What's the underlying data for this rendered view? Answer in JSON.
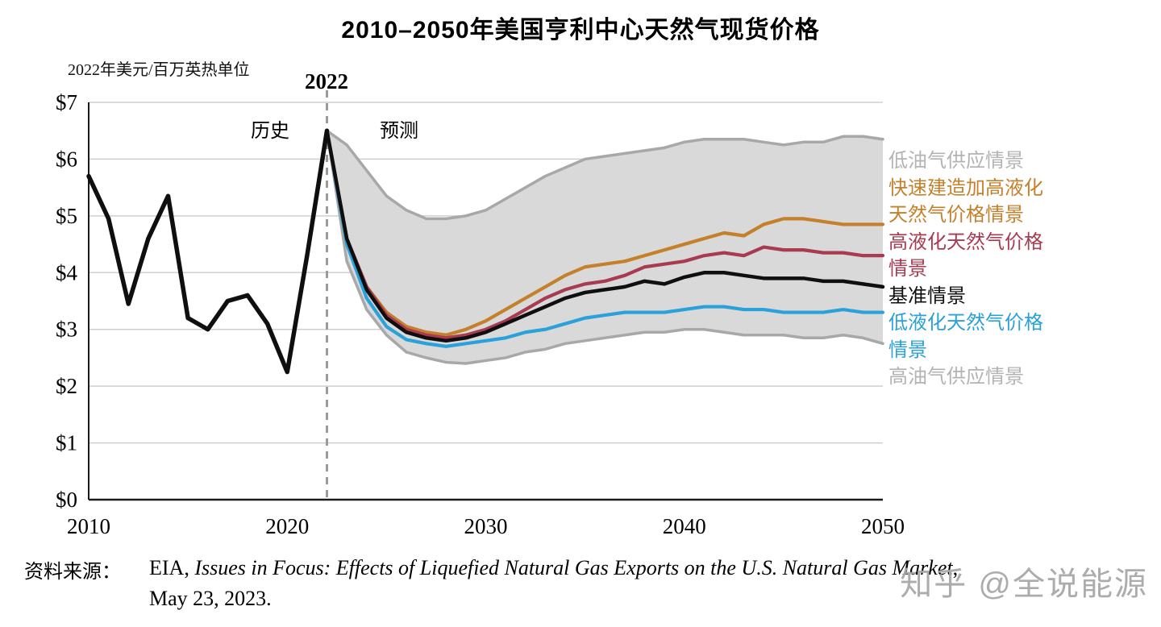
{
  "title": "2010–2050年美国亨利中心天然气现货价格",
  "unit_label": "2022年美元/百万英热单位",
  "annotations": {
    "year_marker": "2022",
    "history": "历史",
    "forecast": "预测"
  },
  "watermark": "知乎 @全说能源",
  "source": {
    "prefix": "资料来源：",
    "org": "EIA, ",
    "title_italic": "Issues in Focus: Effects of Liquefied Natural Gas Exports on the U.S. Natural Gas Market",
    "suffix": ",",
    "date_line": "May 23, 2023."
  },
  "colors": {
    "reference_black": "#0f0f0f",
    "fast_build_orange": "#c5802b",
    "high_lng_red": "#a93b51",
    "low_lng_blue": "#2aa1da",
    "supply_gray": "#a8a8a8",
    "legend_gray": "#b3b3b3",
    "band_gray": "#d9d9d9",
    "grid_gray": "#cfcfcf",
    "divider_gray": "#9a9a9a"
  },
  "chart_data": {
    "type": "line",
    "title": "2010–2050年美国亨利中心天然气现货价格",
    "ylabel": "2022年美元/百万英热单位",
    "xlabel": "",
    "ylim": [
      0,
      7
    ],
    "xlim": [
      2010,
      2050
    ],
    "grid": true,
    "legend_position": "right",
    "divider_year": 2022,
    "band_color": "#d9d9d9",
    "y_ticks": [
      "$0",
      "$1",
      "$2",
      "$3",
      "$4",
      "$5",
      "$6",
      "$7"
    ],
    "x_ticks": [
      {
        "value": 2010,
        "label": "2010"
      },
      {
        "value": 2020,
        "label": "2020"
      },
      {
        "value": 2030,
        "label": "2030"
      },
      {
        "value": 2040,
        "label": "2040"
      },
      {
        "value": 2050,
        "label": "2050"
      }
    ],
    "history_years": [
      2010,
      2011,
      2012,
      2013,
      2014,
      2015,
      2016,
      2017,
      2018,
      2019,
      2020,
      2021,
      2022
    ],
    "forecast_years": [
      2022,
      2023,
      2024,
      2025,
      2026,
      2027,
      2028,
      2029,
      2030,
      2031,
      2032,
      2033,
      2034,
      2035,
      2036,
      2037,
      2038,
      2039,
      2040,
      2041,
      2042,
      2043,
      2044,
      2045,
      2046,
      2047,
      2048,
      2049,
      2050
    ],
    "series": [
      {
        "id": "low_supply",
        "name": "低油气供应情景",
        "color": "#a8a8a8",
        "width": 3.5,
        "values": [
          6.5,
          6.25,
          5.8,
          5.35,
          5.1,
          4.95,
          4.95,
          5.0,
          5.1,
          5.3,
          5.5,
          5.7,
          5.85,
          6.0,
          6.05,
          6.1,
          6.15,
          6.2,
          6.3,
          6.35,
          6.35,
          6.35,
          6.3,
          6.25,
          6.3,
          6.3,
          6.4,
          6.4,
          6.35
        ]
      },
      {
        "id": "high_supply",
        "name": "高油气供应情景",
        "color": "#a8a8a8",
        "width": 3.5,
        "values": [
          6.5,
          4.2,
          3.35,
          2.9,
          2.6,
          2.5,
          2.42,
          2.4,
          2.45,
          2.5,
          2.6,
          2.65,
          2.75,
          2.8,
          2.85,
          2.9,
          2.95,
          2.95,
          3.0,
          3.0,
          2.95,
          2.9,
          2.9,
          2.9,
          2.85,
          2.85,
          2.9,
          2.85,
          2.75
        ]
      },
      {
        "id": "low_lng",
        "name": "低液化天然气价格情景",
        "color": "#2aa1da",
        "width": 4.2,
        "values": [
          6.5,
          4.5,
          3.55,
          3.05,
          2.82,
          2.75,
          2.7,
          2.75,
          2.8,
          2.85,
          2.95,
          3.0,
          3.1,
          3.2,
          3.25,
          3.3,
          3.3,
          3.3,
          3.35,
          3.4,
          3.4,
          3.35,
          3.35,
          3.3,
          3.3,
          3.3,
          3.35,
          3.3,
          3.3
        ]
      },
      {
        "id": "fast_build_high_lng",
        "name": "快速建造加高液化天然气价格情景",
        "color": "#c5802b",
        "width": 4.2,
        "values": [
          6.5,
          4.6,
          3.75,
          3.3,
          3.05,
          2.95,
          2.9,
          3.0,
          3.15,
          3.35,
          3.55,
          3.75,
          3.95,
          4.1,
          4.15,
          4.2,
          4.3,
          4.4,
          4.5,
          4.6,
          4.7,
          4.65,
          4.85,
          4.95,
          4.95,
          4.9,
          4.85,
          4.85,
          4.85
        ]
      },
      {
        "id": "high_lng",
        "name": "高液化天然气价格情景",
        "color": "#a93b51",
        "width": 4.2,
        "values": [
          6.5,
          4.6,
          3.75,
          3.25,
          3.0,
          2.9,
          2.85,
          2.9,
          3.0,
          3.15,
          3.35,
          3.55,
          3.7,
          3.8,
          3.85,
          3.95,
          4.1,
          4.15,
          4.2,
          4.3,
          4.35,
          4.3,
          4.45,
          4.4,
          4.4,
          4.35,
          4.35,
          4.3,
          4.3
        ]
      },
      {
        "id": "reference",
        "name": "基准情景",
        "color": "#0f0f0f",
        "width": 4.5,
        "values": [
          6.5,
          4.6,
          3.7,
          3.2,
          2.95,
          2.85,
          2.8,
          2.85,
          2.95,
          3.1,
          3.25,
          3.4,
          3.55,
          3.65,
          3.7,
          3.75,
          3.85,
          3.8,
          3.92,
          4.0,
          4.0,
          3.95,
          3.9,
          3.9,
          3.9,
          3.85,
          3.85,
          3.8,
          3.75
        ]
      },
      {
        "id": "historical",
        "name": "历史",
        "color": "#0f0f0f",
        "width": 5.5,
        "values": [
          5.7,
          4.95,
          3.45,
          4.6,
          5.35,
          3.2,
          3.0,
          3.5,
          3.6,
          3.1,
          2.25,
          4.3,
          6.5
        ]
      }
    ],
    "legend": [
      {
        "label": "低油气供应情景",
        "color": "#b3b3b3"
      },
      {
        "label": "快速建造加高液化天然气价格情景",
        "color": "#c5802b"
      },
      {
        "label": "高液化天然气价格情景",
        "color": "#a93b51"
      },
      {
        "label": "基准情景",
        "color": "#0f0f0f"
      },
      {
        "label": "低液化天然气价格情景",
        "color": "#2aa1da"
      },
      {
        "label": "高油气供应情景",
        "color": "#b3b3b3"
      }
    ]
  }
}
